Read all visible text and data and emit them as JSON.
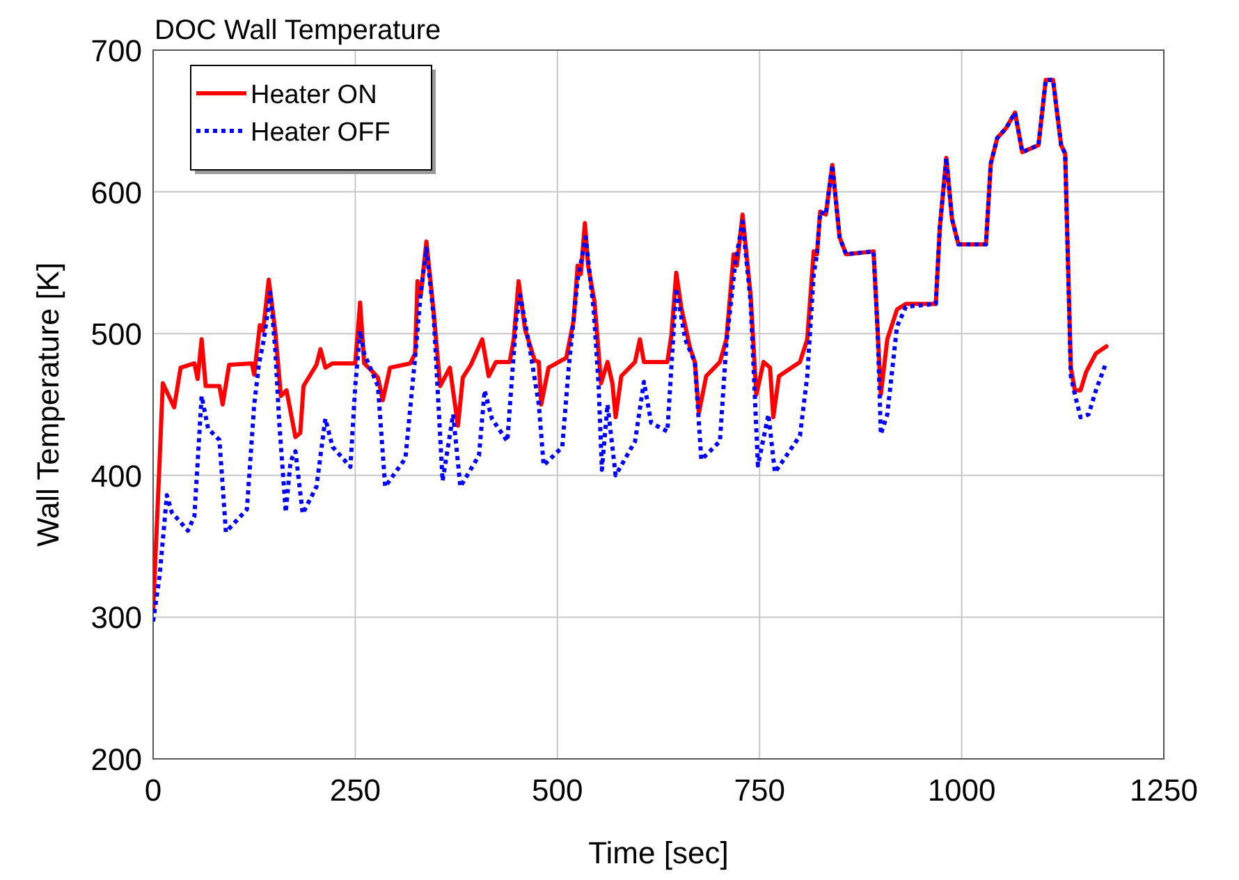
{
  "chart_data": {
    "type": "line",
    "title": "DOC Wall Temperature",
    "xlabel": "Time [sec]",
    "ylabel": "Wall Temperature [K]",
    "xlim": [
      0,
      1250
    ],
    "xticks": [
      0,
      250,
      500,
      750,
      1000,
      1250
    ],
    "ylim": [
      200,
      700
    ],
    "yticks": [
      200,
      300,
      400,
      500,
      600,
      700
    ],
    "grid": true,
    "legend": "top left",
    "series": [
      {
        "name": "Heater ON",
        "color": "#ff0000",
        "line_style": "solid",
        "x": [
          0,
          8,
          12,
          26,
          34,
          51,
          55,
          60,
          65,
          82,
          86,
          94,
          122,
          125,
          132,
          136,
          143,
          151,
          158,
          165,
          176,
          182,
          186,
          202,
          207,
          213,
          222,
          250,
          256,
          261,
          270,
          278,
          284,
          293,
          318,
          324,
          327,
          331,
          338,
          347,
          355,
          367,
          377,
          383,
          393,
          407,
          415,
          424,
          441,
          446,
          452,
          460,
          472,
          477,
          480,
          489,
          511,
          520,
          525,
          529,
          534,
          538,
          546,
          554,
          562,
          568,
          572,
          579,
          596,
          602,
          607,
          636,
          641,
          647,
          653,
          664,
          670,
          675,
          684,
          701,
          709,
          718,
          722,
          729,
          739,
          746,
          755,
          763,
          767,
          774,
          800,
          809,
          817,
          821,
          825,
          832,
          840,
          849,
          857,
          891,
          896,
          900,
          908,
          920,
          931,
          968,
          973,
          981,
          988,
          996,
          1030,
          1036,
          1044,
          1055,
          1066,
          1075,
          1095,
          1104,
          1113,
          1123,
          1128,
          1135,
          1140,
          1147,
          1154,
          1166,
          1179
        ],
        "values": [
          305,
          410,
          465,
          448,
          476,
          479,
          468,
          496,
          463,
          463,
          450,
          478,
          479,
          471,
          506,
          502,
          538,
          502,
          456,
          460,
          427,
          430,
          463,
          478,
          489,
          476,
          479,
          479,
          522,
          479,
          474,
          469,
          453,
          476,
          479,
          486,
          537,
          527,
          565,
          515,
          463,
          476,
          435,
          469,
          478,
          496,
          470,
          480,
          480,
          496,
          537,
          503,
          481,
          480,
          450,
          476,
          483,
          509,
          548,
          542,
          578,
          548,
          522,
          465,
          480,
          465,
          441,
          470,
          480,
          496,
          480,
          480,
          499,
          543,
          519,
          490,
          480,
          444,
          470,
          480,
          496,
          556,
          548,
          584,
          527,
          457,
          480,
          476,
          441,
          470,
          480,
          496,
          558,
          556,
          586,
          584,
          619,
          568,
          556,
          558,
          503,
          457,
          496,
          517,
          521,
          521,
          575,
          624,
          581,
          563,
          563,
          620,
          638,
          645,
          656,
          628,
          633,
          679,
          679,
          633,
          627,
          476,
          460,
          460,
          473,
          486,
          491
        ]
      },
      {
        "name": "Heater OFF",
        "color": "#0000ff",
        "line_style": "dotted",
        "x": [
          0,
          8,
          17,
          23,
          43,
          51,
          60,
          68,
          82,
          90,
          116,
          125,
          131,
          137,
          145,
          151,
          156,
          164,
          170,
          176,
          185,
          202,
          213,
          222,
          244,
          250,
          256,
          261,
          278,
          287,
          312,
          324,
          331,
          338,
          347,
          358,
          371,
          380,
          403,
          410,
          419,
          438,
          449,
          454,
          466,
          477,
          483,
          506,
          514,
          525,
          535,
          545,
          551,
          555,
          562,
          572,
          596,
          607,
          616,
          636,
          647,
          658,
          670,
          678,
          701,
          709,
          720,
          729,
          739,
          748,
          761,
          769,
          800,
          809,
          817,
          821,
          825,
          832,
          840,
          849,
          857,
          891,
          896,
          900,
          908,
          920,
          931,
          968,
          973,
          981,
          988,
          996,
          1030,
          1036,
          1044,
          1055,
          1066,
          1075,
          1095,
          1104,
          1113,
          1123,
          1128,
          1135,
          1140,
          1147,
          1157,
          1166,
          1179
        ],
        "values": [
          297,
          329,
          386,
          374,
          361,
          371,
          456,
          433,
          425,
          360,
          376,
          450,
          479,
          496,
          529,
          489,
          437,
          374,
          410,
          417,
          373,
          392,
          440,
          420,
          406,
          463,
          502,
          486,
          463,
          392,
          412,
          483,
          529,
          560,
          512,
          396,
          443,
          392,
          414,
          460,
          440,
          424,
          509,
          527,
          489,
          450,
          407,
          420,
          476,
          538,
          568,
          516,
          463,
          404,
          450,
          400,
          424,
          466,
          437,
          431,
          532,
          496,
          480,
          411,
          424,
          493,
          550,
          579,
          522,
          407,
          443,
          402,
          428,
          470,
          542,
          556,
          586,
          584,
          619,
          568,
          556,
          558,
          503,
          429,
          443,
          505,
          519,
          521,
          575,
          624,
          581,
          563,
          563,
          620,
          638,
          645,
          656,
          628,
          633,
          679,
          679,
          633,
          627,
          470,
          457,
          441,
          443,
          460,
          480
        ]
      }
    ]
  }
}
